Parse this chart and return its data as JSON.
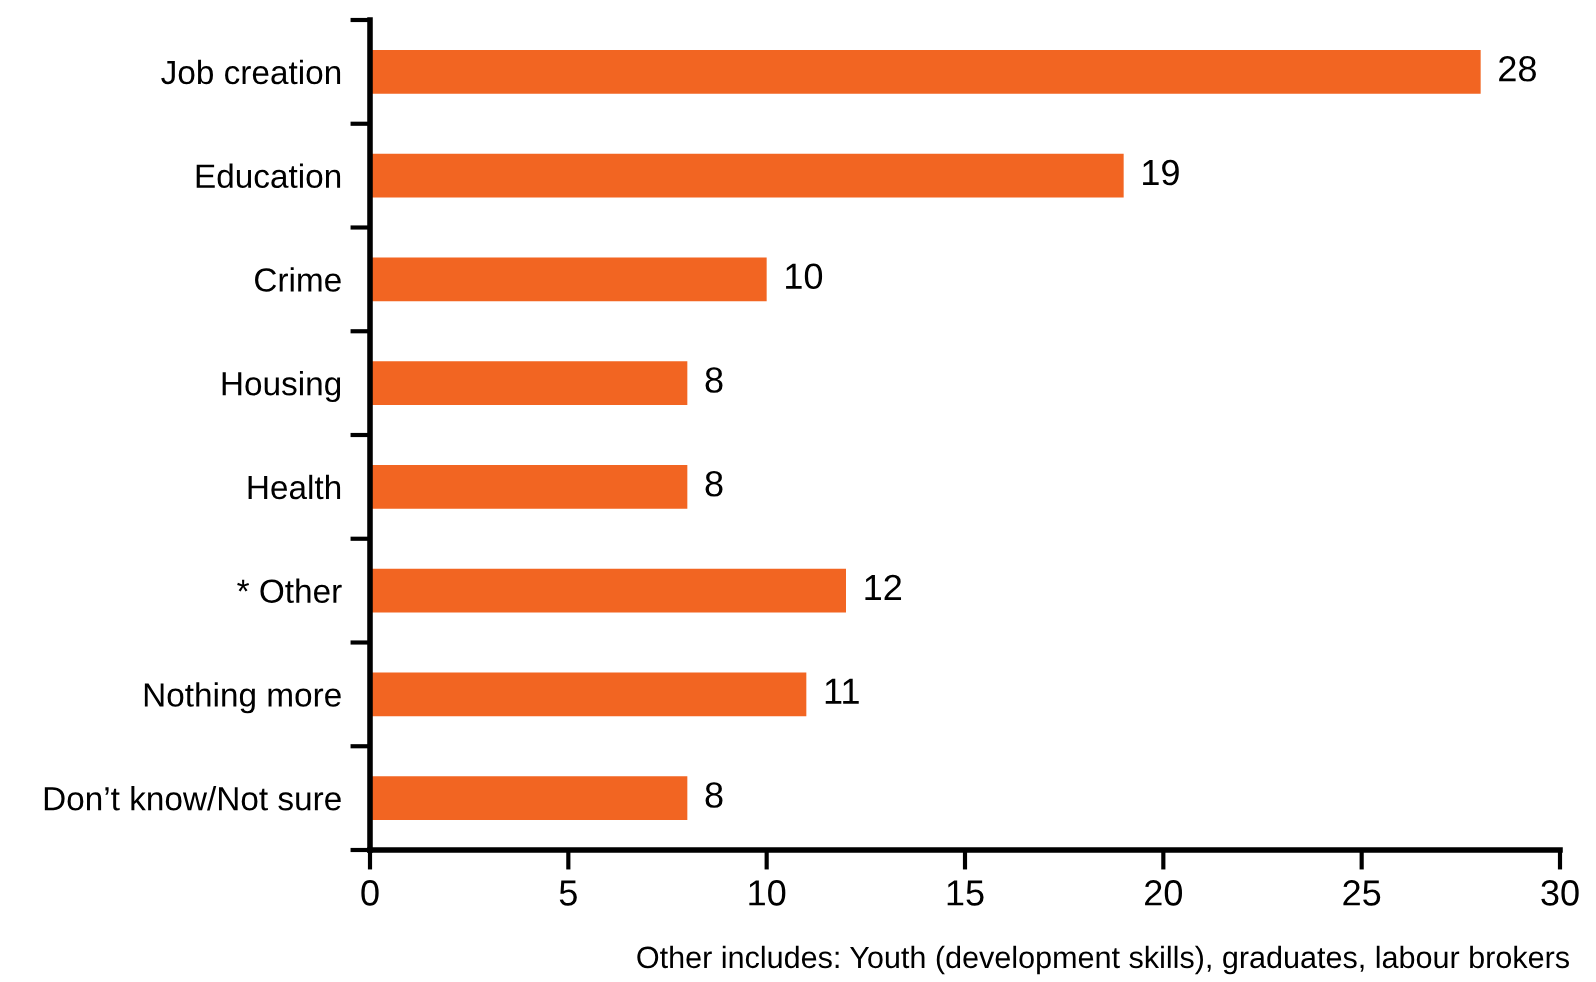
{
  "chart_data": {
    "type": "bar",
    "orientation": "horizontal",
    "categories": [
      "Job creation",
      "Education",
      "Crime",
      "Housing",
      "Health",
      "* Other",
      "Nothing more",
      "Don’t know/Not sure"
    ],
    "values": [
      28,
      19,
      10,
      8,
      8,
      12,
      11,
      8
    ],
    "color": "#f26522",
    "xlim": [
      0,
      30
    ],
    "xticks": [
      0,
      5,
      10,
      15,
      20,
      25,
      30
    ],
    "data_labels": true,
    "grid": false,
    "legend": false,
    "annotations": [
      "Other includes: Youth (development skills), graduates, labour brokers"
    ]
  }
}
